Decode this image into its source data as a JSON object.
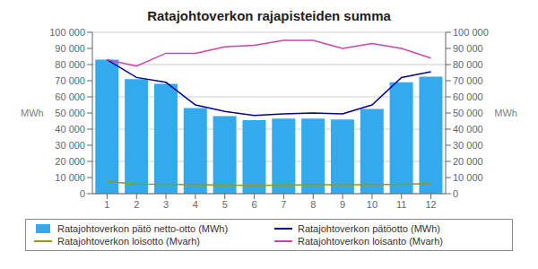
{
  "chart_data": {
    "type": "bar",
    "title": "Ratajohtoverkon rajapisteiden summa",
    "categories": [
      "1",
      "2",
      "3",
      "4",
      "5",
      "6",
      "7",
      "8",
      "9",
      "10",
      "11",
      "12"
    ],
    "series": [
      {
        "name": "Ratajohtoverkon pätö netto-otto (MWh)",
        "type": "bar",
        "color": "#33aaee",
        "values": [
          83000,
          71000,
          68000,
          53000,
          48000,
          45500,
          46500,
          46500,
          46000,
          52500,
          69000,
          72500
        ]
      },
      {
        "name": "Ratajohtoverkon pätöotto (MWh)",
        "type": "line",
        "color": "#000099",
        "values": [
          83000,
          72000,
          69000,
          55000,
          51000,
          48500,
          49500,
          50000,
          49500,
          55000,
          72000,
          75500
        ]
      },
      {
        "name": "Ratajohtoverkon loisotto (Mvarh)",
        "type": "line",
        "color": "#999900",
        "values": [
          7500,
          6000,
          5800,
          5500,
          5300,
          5200,
          5300,
          5500,
          5500,
          5500,
          5800,
          6200
        ]
      },
      {
        "name": "Ratajohtoverkon loisanto (Mvarh)",
        "type": "line",
        "color": "#cc44aa",
        "axis": "y2",
        "values": [
          83000,
          79000,
          87000,
          87000,
          91000,
          92000,
          95000,
          95000,
          90000,
          93000,
          90000,
          84000
        ]
      }
    ],
    "ylabel": "MWh",
    "y2label": "MWh",
    "ylim": [
      0,
      100000
    ],
    "yticks": [
      0,
      {
        "value": 10000,
        "label": "10 000"
      },
      {
        "value": 20000,
        "label": "20 000"
      },
      {
        "value": 30000,
        "label": "30 000"
      },
      {
        "value": 40000,
        "label": "40 000"
      },
      {
        "value": 50000,
        "label": "50 000"
      },
      {
        "value": 60000,
        "label": "60 000"
      },
      {
        "value": 70000,
        "label": "70 000"
      },
      {
        "value": 80000,
        "label": "80 000"
      },
      {
        "value": 90000,
        "label": "90 000"
      },
      {
        "value": 100000,
        "label": "100 000"
      }
    ],
    "y2lim": [
      0,
      100000
    ],
    "y2ticks": [
      0,
      {
        "value": 10000,
        "label": "10 000"
      },
      {
        "value": 20000,
        "label": "20 000"
      },
      {
        "value": 30000,
        "label": "30 000"
      },
      {
        "value": 40000,
        "label": "40 000"
      },
      {
        "value": 50000,
        "label": "50 000"
      },
      {
        "value": 60000,
        "label": "60 000"
      },
      {
        "value": 70000,
        "label": "70 000"
      },
      {
        "value": 80000,
        "label": "80 000"
      },
      {
        "value": 90000,
        "label": "90 000"
      },
      {
        "value": 100000,
        "label": "100 000"
      }
    ],
    "grid": true,
    "legend": "bottom"
  }
}
